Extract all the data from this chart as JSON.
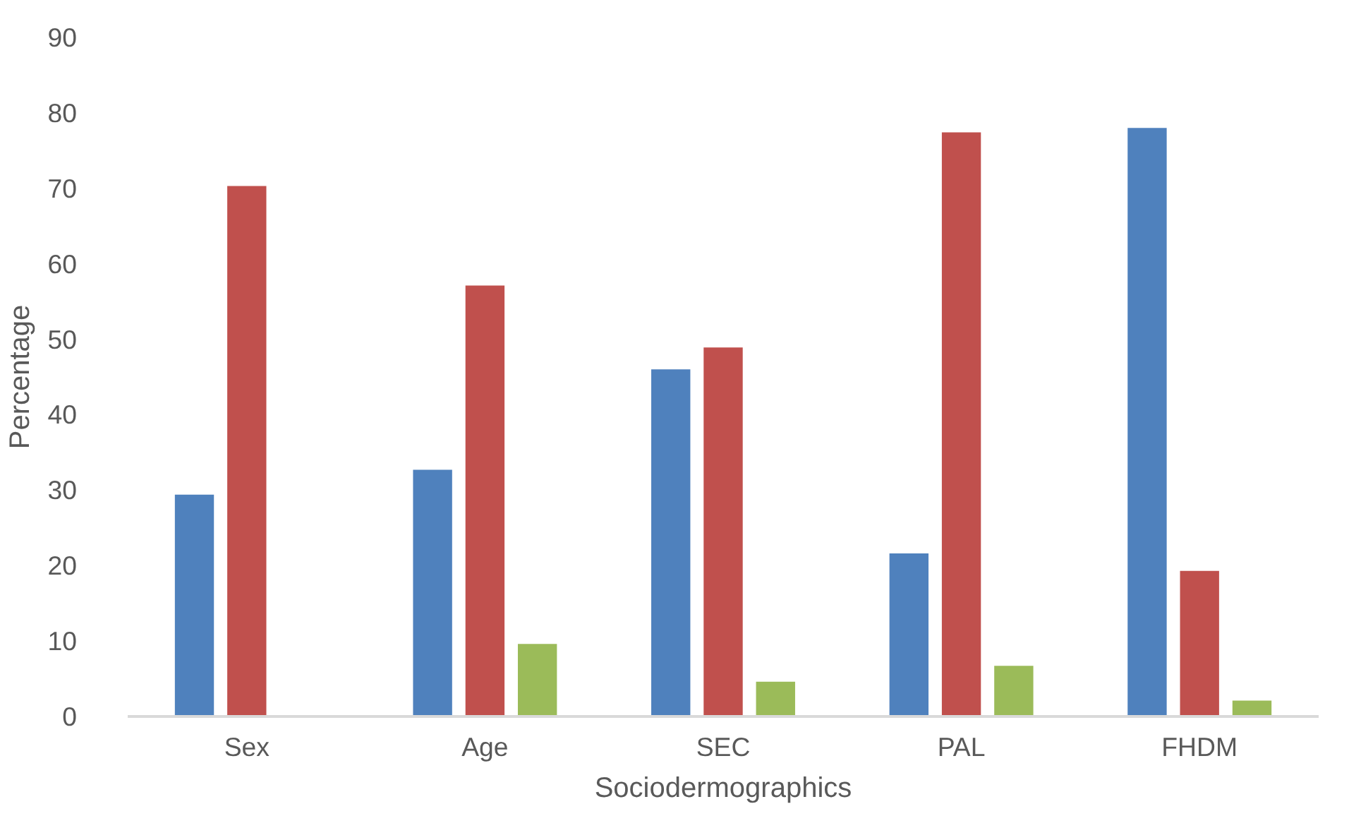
{
  "chart_data": {
    "type": "bar",
    "xlabel": "Sociodermographics",
    "ylabel": "Percentage",
    "categories": [
      "Sex",
      "Age",
      "SEC",
      "PAL",
      "FHDM"
    ],
    "series": [
      {
        "color": "#4f81bd",
        "values": [
          29.5,
          32.8,
          46.1,
          21.7,
          78.1
        ]
      },
      {
        "color": "#c0504d",
        "values": [
          70.4,
          57.2,
          49.0,
          77.5,
          19.4
        ]
      },
      {
        "color": "#9bbb59",
        "values": [
          null,
          9.7,
          4.7,
          6.8,
          2.2
        ]
      }
    ],
    "ylim": [
      0,
      90
    ],
    "yticks": [
      0,
      10,
      20,
      30,
      40,
      50,
      60,
      70,
      80,
      90
    ],
    "grid": false
  }
}
